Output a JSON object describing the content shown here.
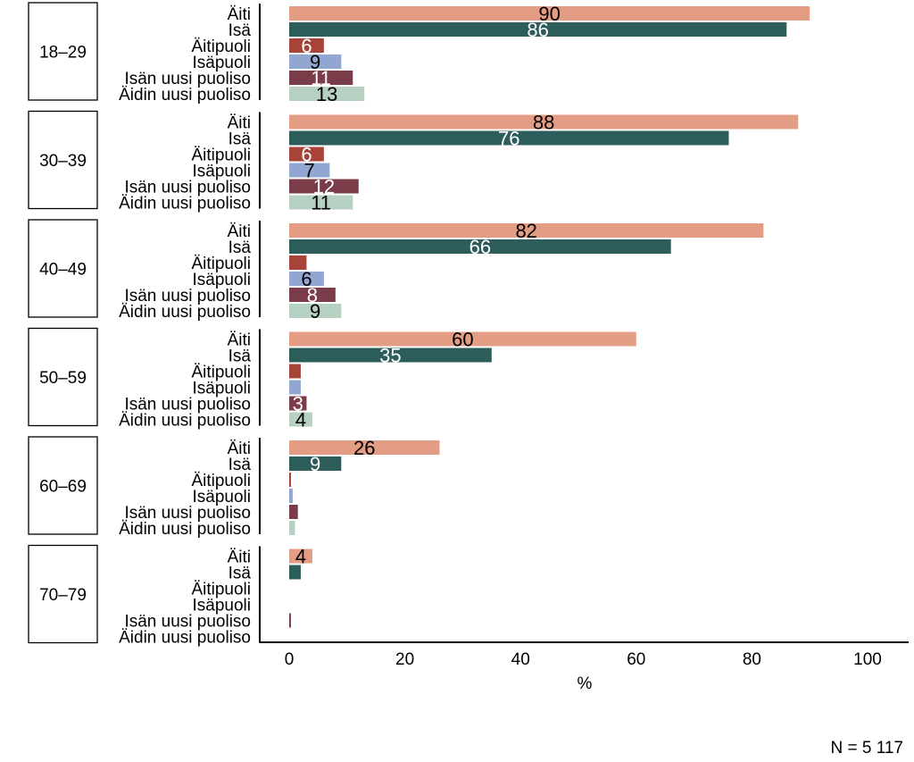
{
  "chart_data": {
    "type": "bar",
    "orientation": "horizontal",
    "xlabel": "%",
    "xlim": [
      0,
      100
    ],
    "xticks": [
      0,
      20,
      40,
      60,
      80,
      100
    ],
    "note": "N = 5 117",
    "categories": [
      "Äiti",
      "Isä",
      "Äitipuoli",
      "Isäpuoli",
      "Isän uusi puoliso",
      "Äidin uusi puoliso"
    ],
    "colors": {
      "Äiti": "#e49d85",
      "Isä": "#2c5d5b",
      "Äitipuoli": "#a6443a",
      "Isäpuoli": "#92a6d2",
      "Isän uusi puoliso": "#7b3c4a",
      "Äidin uusi puoliso": "#b6d0c2"
    },
    "label_colors": {
      "Äiti": "#000000",
      "Isä": "#ffffff",
      "Äitipuoli": "#ffffff",
      "Isäpuoli": "#000000",
      "Isän uusi puoliso": "#ffffff",
      "Äidin uusi puoliso": "#000000"
    },
    "groups": [
      {
        "name": "18–29",
        "values": [
          90,
          86,
          6,
          9,
          11,
          13
        ],
        "labels": [
          "90",
          "86",
          "6",
          "9",
          "11",
          "13"
        ]
      },
      {
        "name": "30–39",
        "values": [
          88,
          76,
          6,
          7,
          12,
          11
        ],
        "labels": [
          "88",
          "76",
          "6",
          "7",
          "12",
          "11"
        ]
      },
      {
        "name": "40–49",
        "values": [
          82,
          66,
          3,
          6,
          8,
          9
        ],
        "labels": [
          "82",
          "66",
          "",
          "6",
          "8",
          "9"
        ]
      },
      {
        "name": "50–59",
        "values": [
          60,
          35,
          2,
          2,
          3,
          4
        ],
        "labels": [
          "60",
          "35",
          "",
          "",
          "3",
          "4"
        ]
      },
      {
        "name": "60–69",
        "values": [
          26,
          9,
          0.3,
          0.6,
          1.5,
          1
        ],
        "labels": [
          "26",
          "9",
          "",
          "",
          "",
          ""
        ]
      },
      {
        "name": "70–79",
        "values": [
          4,
          2,
          0,
          0,
          0.3,
          0
        ],
        "labels": [
          "4",
          "",
          "",
          "",
          "",
          ""
        ]
      }
    ]
  }
}
